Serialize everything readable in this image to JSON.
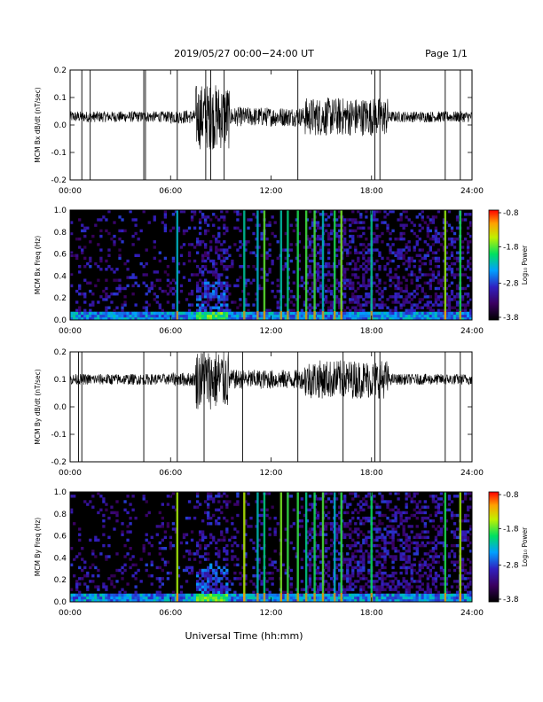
{
  "header": {
    "title": "2019/05/27  00:00−24:00 UT",
    "page": "Page 1/1"
  },
  "x_axis_label": "Universal Time (hh:mm)",
  "colorbar": {
    "label": "Log₁₀ Power",
    "ticks": [
      "-0.8",
      "-1.8",
      "-2.8",
      "-3.8"
    ]
  },
  "chart_data": [
    {
      "type": "line",
      "ylabel": "MCM Bx dB/dt (nT/sec)",
      "xlabel": "",
      "x_unit": "hours UT",
      "xlim": [
        0,
        24
      ],
      "ylim": [
        -0.2,
        0.2
      ],
      "x_ticks": [
        "00:00",
        "06:00",
        "12:00",
        "18:00",
        "24:00"
      ],
      "y_ticks": [
        "0.2",
        "0.1",
        "0.0",
        "-0.1",
        "-0.2"
      ],
      "baseline": 0.03,
      "activity_envelope": [
        {
          "from": 0,
          "to": 6,
          "amplitude": 0.02
        },
        {
          "from": 6,
          "to": 7.5,
          "amplitude": 0.025
        },
        {
          "from": 7.5,
          "to": 9.5,
          "amplitude": 0.12
        },
        {
          "from": 9.5,
          "to": 14,
          "amplitude": 0.035
        },
        {
          "from": 14,
          "to": 19,
          "amplitude": 0.07
        },
        {
          "from": 19,
          "to": 24,
          "amplitude": 0.02
        }
      ],
      "spikes_hours": [
        0.7,
        1.2,
        4.4,
        4.5,
        6.4,
        8.1,
        8.4,
        9.2,
        13.6,
        18.2,
        18.5,
        22.4,
        23.3
      ]
    },
    {
      "type": "heatmap",
      "ylabel": "MCM Bx Freq (Hz)",
      "xlabel": "",
      "xlim": [
        0,
        24
      ],
      "ylim": [
        0.0,
        1.0
      ],
      "x_ticks": [
        "00:00",
        "06:00",
        "12:00",
        "18:00",
        "24:00"
      ],
      "y_ticks": [
        "1.0",
        "0.8",
        "0.6",
        "0.4",
        "0.2",
        "0.0"
      ],
      "color_scale": {
        "min": -3.8,
        "max": -0.8,
        "unit": "Log10 Power"
      },
      "vertical_bands_hours": [
        6.4,
        10.4,
        11.2,
        11.6,
        12.6,
        13.0,
        13.6,
        14.1,
        14.6,
        15.1,
        15.8,
        16.2,
        18.0,
        22.4,
        23.3
      ]
    },
    {
      "type": "line",
      "ylabel": "MCM By dB/dt (nT/sec)",
      "xlabel": "",
      "x_unit": "hours UT",
      "xlim": [
        0,
        24
      ],
      "ylim": [
        -0.2,
        0.2
      ],
      "x_ticks": [
        "00:00",
        "06:00",
        "12:00",
        "18:00",
        "24:00"
      ],
      "y_ticks": [
        "0.2",
        "0.1",
        "0.0",
        "-0.1",
        "-0.2"
      ],
      "baseline": 0.1,
      "activity_envelope": [
        {
          "from": 0,
          "to": 6,
          "amplitude": 0.02
        },
        {
          "from": 6,
          "to": 7.5,
          "amplitude": 0.025
        },
        {
          "from": 7.5,
          "to": 9.5,
          "amplitude": 0.11
        },
        {
          "from": 9.5,
          "to": 14,
          "amplitude": 0.035
        },
        {
          "from": 14,
          "to": 19,
          "amplitude": 0.07
        },
        {
          "from": 19,
          "to": 24,
          "amplitude": 0.02
        }
      ],
      "spikes_hours": [
        0.5,
        0.7,
        4.4,
        6.4,
        8.0,
        10.3,
        13.6,
        16.3,
        18.2,
        18.5,
        22.4,
        23.3
      ]
    },
    {
      "type": "heatmap",
      "ylabel": "MCM By Freq (Hz)",
      "xlabel": "",
      "xlim": [
        0,
        24
      ],
      "ylim": [
        0.0,
        1.0
      ],
      "x_ticks": [
        "00:00",
        "06:00",
        "12:00",
        "18:00",
        "24:00"
      ],
      "y_ticks": [
        "1.0",
        "0.8",
        "0.6",
        "0.4",
        "0.2",
        "0.0"
      ],
      "color_scale": {
        "min": -3.8,
        "max": -0.8,
        "unit": "Log10 Power"
      },
      "vertical_bands_hours": [
        6.4,
        10.4,
        11.2,
        11.6,
        12.6,
        13.0,
        13.6,
        14.1,
        14.6,
        15.1,
        15.8,
        16.2,
        18.0,
        22.4,
        23.3
      ]
    }
  ]
}
